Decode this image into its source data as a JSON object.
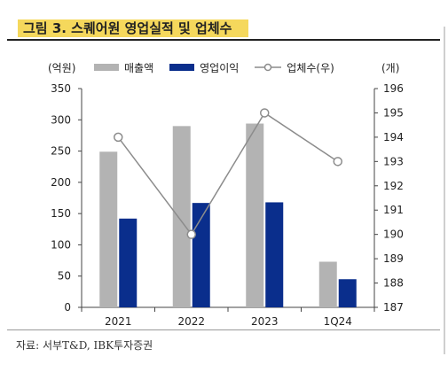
{
  "figure": {
    "title": "그림 3. 스퀘어원 영업실적 및 업체수",
    "source": "자료: 서부T&D, IBK투자증권"
  },
  "colors": {
    "revenue": "#b3b3b3",
    "op_profit": "#0a2e8c",
    "count_line": "#8c8c8c",
    "title_highlight": "#f5d85c"
  },
  "chart_data": {
    "type": "bar",
    "categories": [
      "2021",
      "2022",
      "2023",
      "1Q24"
    ],
    "left_axis": {
      "unit_label": "(억원)",
      "ylim": [
        0,
        350
      ],
      "ticks": [
        "0",
        "50",
        "100",
        "150",
        "200",
        "250",
        "300",
        "350"
      ]
    },
    "right_axis": {
      "unit_label": "(개)",
      "ylim": [
        187,
        196
      ],
      "ticks": [
        "187",
        "188",
        "189",
        "190",
        "191",
        "192",
        "193",
        "194",
        "195",
        "196"
      ]
    },
    "series": [
      {
        "name": "매출액",
        "type": "bar",
        "axis": "left",
        "values": [
          249,
          290,
          294,
          73
        ]
      },
      {
        "name": "영업이익",
        "type": "bar",
        "axis": "left",
        "values": [
          142,
          167,
          168,
          45
        ]
      },
      {
        "name": "업체수(우)",
        "type": "line",
        "axis": "right",
        "values": [
          194,
          190,
          195,
          193
        ]
      }
    ],
    "grid": false,
    "legend_position": "top"
  }
}
